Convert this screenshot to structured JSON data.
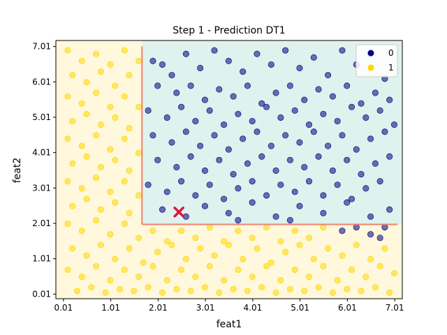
{
  "chart_data": {
    "type": "scatter",
    "title": "Step 1 - Prediction DT1",
    "xlabel": "feat1",
    "ylabel": "feat2",
    "xlim": [
      -0.15,
      7.17
    ],
    "ylim": [
      -0.12,
      7.18
    ],
    "x_ticks": [
      "0.01",
      "1.01",
      "2.01",
      "3.01",
      "4.01",
      "5.01",
      "6.01",
      "7.01"
    ],
    "y_ticks": [
      "0.01",
      "1.01",
      "2.01",
      "3.01",
      "4.01",
      "5.01",
      "6.01",
      "7.01"
    ],
    "x_tick_values": [
      0.01,
      1.01,
      2.01,
      3.01,
      4.01,
      5.01,
      6.01,
      7.01
    ],
    "y_tick_values": [
      0.01,
      1.01,
      2.01,
      3.01,
      4.01,
      5.01,
      6.01,
      7.01
    ],
    "grid": false,
    "legend_position": "top-right",
    "regions": [
      {
        "label": "1",
        "x": [
          -0.15,
          1.67
        ],
        "y": [
          -0.12,
          7.18
        ],
        "color": "#fff8dc"
      },
      {
        "label": "1",
        "x": [
          1.67,
          7.17
        ],
        "y": [
          -0.12,
          1.98
        ],
        "color": "#fff8dc"
      },
      {
        "label": "0",
        "x": [
          1.67,
          7.17
        ],
        "y": [
          1.98,
          7.18
        ],
        "color": "#e0f2ee"
      }
    ],
    "split_lines": [
      {
        "x": [
          1.67,
          1.67
        ],
        "y": [
          1.98,
          7.01
        ],
        "color": "#f08070"
      },
      {
        "x": [
          1.67,
          7.07
        ],
        "y": [
          1.98,
          1.98
        ],
        "color": "#f08070"
      }
    ],
    "marker": {
      "x": 2.45,
      "y": 2.33,
      "symbol": "x",
      "color": "#dc143c"
    },
    "series": [
      {
        "name": "0",
        "color": "#000080",
        "points": [
          [
            1.9,
            6.6
          ],
          [
            2.1,
            6.5
          ],
          [
            2.3,
            6.2
          ],
          [
            2.6,
            6.8
          ],
          [
            2.9,
            6.4
          ],
          [
            3.2,
            6.9
          ],
          [
            3.5,
            6.6
          ],
          [
            3.8,
            6.3
          ],
          [
            4.1,
            6.8
          ],
          [
            4.4,
            6.5
          ],
          [
            4.7,
            6.9
          ],
          [
            5.0,
            6.4
          ],
          [
            5.3,
            6.7
          ],
          [
            5.6,
            6.2
          ],
          [
            5.9,
            6.9
          ],
          [
            6.2,
            6.5
          ],
          [
            6.5,
            6.8
          ],
          [
            6.8,
            6.1
          ],
          [
            2.0,
            5.9
          ],
          [
            2.4,
            5.7
          ],
          [
            2.7,
            5.9
          ],
          [
            3.0,
            5.5
          ],
          [
            3.3,
            5.8
          ],
          [
            3.6,
            5.6
          ],
          [
            3.9,
            5.9
          ],
          [
            4.2,
            5.4
          ],
          [
            4.5,
            5.7
          ],
          [
            4.8,
            5.9
          ],
          [
            5.1,
            5.5
          ],
          [
            5.4,
            5.8
          ],
          [
            5.7,
            5.6
          ],
          [
            6.0,
            5.9
          ],
          [
            6.3,
            5.4
          ],
          [
            6.6,
            5.7
          ],
          [
            6.9,
            5.5
          ],
          [
            1.8,
            5.2
          ],
          [
            2.2,
            5.0
          ],
          [
            2.5,
            5.3
          ],
          [
            2.8,
            4.9
          ],
          [
            3.1,
            5.2
          ],
          [
            3.4,
            4.8
          ],
          [
            3.7,
            5.1
          ],
          [
            4.0,
            4.9
          ],
          [
            4.3,
            5.3
          ],
          [
            4.6,
            5.0
          ],
          [
            4.9,
            5.2
          ],
          [
            5.2,
            4.8
          ],
          [
            5.5,
            5.1
          ],
          [
            5.8,
            4.9
          ],
          [
            6.1,
            5.3
          ],
          [
            6.4,
            5.0
          ],
          [
            6.7,
            5.2
          ],
          [
            7.0,
            4.8
          ],
          [
            1.9,
            4.5
          ],
          [
            2.3,
            4.3
          ],
          [
            2.6,
            4.6
          ],
          [
            2.9,
            4.2
          ],
          [
            3.2,
            4.5
          ],
          [
            3.5,
            4.1
          ],
          [
            3.8,
            4.4
          ],
          [
            4.1,
            4.6
          ],
          [
            4.4,
            4.2
          ],
          [
            4.7,
            4.5
          ],
          [
            5.0,
            4.3
          ],
          [
            5.3,
            4.6
          ],
          [
            5.6,
            4.2
          ],
          [
            5.9,
            4.5
          ],
          [
            6.2,
            4.1
          ],
          [
            6.5,
            4.4
          ],
          [
            6.8,
            4.6
          ],
          [
            2.0,
            3.8
          ],
          [
            2.4,
            3.6
          ],
          [
            2.7,
            3.9
          ],
          [
            3.0,
            3.5
          ],
          [
            3.3,
            3.8
          ],
          [
            3.6,
            3.4
          ],
          [
            3.9,
            3.7
          ],
          [
            4.2,
            3.9
          ],
          [
            4.5,
            3.5
          ],
          [
            4.8,
            3.8
          ],
          [
            5.1,
            3.6
          ],
          [
            5.4,
            3.9
          ],
          [
            5.7,
            3.5
          ],
          [
            6.0,
            3.8
          ],
          [
            6.3,
            3.4
          ],
          [
            6.6,
            3.7
          ],
          [
            6.9,
            3.9
          ],
          [
            1.8,
            3.1
          ],
          [
            2.2,
            2.9
          ],
          [
            2.5,
            3.2
          ],
          [
            2.8,
            2.8
          ],
          [
            3.1,
            3.1
          ],
          [
            3.4,
            2.7
          ],
          [
            3.7,
            3.0
          ],
          [
            4.0,
            3.2
          ],
          [
            4.3,
            2.8
          ],
          [
            4.6,
            3.1
          ],
          [
            4.9,
            2.9
          ],
          [
            5.2,
            3.2
          ],
          [
            5.5,
            2.8
          ],
          [
            5.8,
            3.1
          ],
          [
            6.1,
            2.7
          ],
          [
            6.4,
            3.0
          ],
          [
            6.7,
            3.2
          ],
          [
            2.1,
            2.4
          ],
          [
            2.6,
            2.2
          ],
          [
            3.0,
            2.5
          ],
          [
            3.5,
            2.3
          ],
          [
            4.0,
            2.6
          ],
          [
            4.5,
            2.2
          ],
          [
            5.0,
            2.5
          ],
          [
            5.5,
            2.3
          ],
          [
            6.0,
            2.6
          ],
          [
            6.5,
            2.2
          ],
          [
            6.9,
            2.4
          ],
          [
            3.7,
            2.1
          ],
          [
            4.8,
            2.1
          ],
          [
            6.2,
            1.9
          ],
          [
            6.5,
            1.7
          ],
          [
            6.8,
            1.9
          ],
          [
            5.9,
            1.8
          ],
          [
            6.7,
            1.6
          ]
        ]
      },
      {
        "name": "1",
        "color": "#ffd700",
        "points": [
          [
            0.1,
            6.9
          ],
          [
            0.4,
            6.6
          ],
          [
            0.7,
            6.8
          ],
          [
            1.0,
            6.5
          ],
          [
            1.3,
            6.9
          ],
          [
            1.6,
            6.6
          ],
          [
            0.2,
            6.2
          ],
          [
            0.5,
            6.0
          ],
          [
            0.8,
            6.3
          ],
          [
            1.1,
            5.9
          ],
          [
            1.4,
            6.2
          ],
          [
            0.1,
            5.6
          ],
          [
            0.4,
            5.4
          ],
          [
            0.7,
            5.7
          ],
          [
            1.0,
            5.3
          ],
          [
            1.3,
            5.6
          ],
          [
            1.6,
            5.3
          ],
          [
            0.2,
            4.9
          ],
          [
            0.5,
            5.1
          ],
          [
            0.8,
            4.8
          ],
          [
            1.1,
            5.0
          ],
          [
            1.4,
            4.7
          ],
          [
            0.1,
            4.4
          ],
          [
            0.4,
            4.2
          ],
          [
            0.7,
            4.5
          ],
          [
            1.0,
            4.1
          ],
          [
            1.3,
            4.4
          ],
          [
            1.6,
            4.0
          ],
          [
            0.2,
            3.7
          ],
          [
            0.5,
            3.9
          ],
          [
            0.8,
            3.6
          ],
          [
            1.1,
            3.8
          ],
          [
            1.4,
            3.5
          ],
          [
            0.1,
            3.2
          ],
          [
            0.4,
            3.0
          ],
          [
            0.7,
            3.3
          ],
          [
            1.0,
            2.9
          ],
          [
            1.3,
            3.2
          ],
          [
            1.6,
            2.8
          ],
          [
            0.2,
            2.5
          ],
          [
            0.5,
            2.7
          ],
          [
            0.8,
            2.4
          ],
          [
            1.1,
            2.6
          ],
          [
            1.4,
            2.3
          ],
          [
            0.1,
            2.0
          ],
          [
            0.4,
            1.8
          ],
          [
            0.7,
            2.1
          ],
          [
            1.0,
            1.7
          ],
          [
            1.3,
            2.0
          ],
          [
            1.6,
            1.6
          ],
          [
            1.9,
            1.8
          ],
          [
            2.2,
            1.5
          ],
          [
            2.5,
            1.8
          ],
          [
            2.8,
            1.6
          ],
          [
            3.1,
            1.9
          ],
          [
            3.4,
            1.5
          ],
          [
            3.7,
            1.8
          ],
          [
            4.0,
            1.6
          ],
          [
            4.3,
            1.9
          ],
          [
            4.6,
            1.5
          ],
          [
            4.9,
            1.8
          ],
          [
            5.2,
            1.6
          ],
          [
            5.5,
            1.9
          ],
          [
            0.2,
            1.3
          ],
          [
            0.5,
            1.1
          ],
          [
            0.8,
            1.4
          ],
          [
            1.1,
            1.0
          ],
          [
            1.4,
            1.3
          ],
          [
            1.7,
            0.9
          ],
          [
            2.0,
            1.2
          ],
          [
            2.3,
            1.4
          ],
          [
            2.6,
            1.0
          ],
          [
            2.9,
            1.3
          ],
          [
            3.2,
            1.1
          ],
          [
            3.5,
            1.4
          ],
          [
            3.8,
            1.0
          ],
          [
            4.1,
            1.3
          ],
          [
            4.4,
            0.9
          ],
          [
            4.7,
            1.2
          ],
          [
            5.0,
            1.4
          ],
          [
            5.3,
            1.0
          ],
          [
            5.6,
            1.3
          ],
          [
            5.9,
            1.1
          ],
          [
            6.2,
            1.4
          ],
          [
            6.5,
            1.0
          ],
          [
            6.8,
            1.3
          ],
          [
            0.1,
            0.7
          ],
          [
            0.4,
            0.5
          ],
          [
            0.7,
            0.8
          ],
          [
            1.0,
            0.4
          ],
          [
            1.3,
            0.7
          ],
          [
            1.6,
            0.5
          ],
          [
            1.9,
            0.8
          ],
          [
            2.2,
            0.4
          ],
          [
            2.5,
            0.7
          ],
          [
            2.8,
            0.5
          ],
          [
            3.1,
            0.8
          ],
          [
            3.4,
            0.4
          ],
          [
            3.7,
            0.7
          ],
          [
            4.0,
            0.5
          ],
          [
            4.3,
            0.8
          ],
          [
            4.6,
            0.4
          ],
          [
            4.9,
            0.7
          ],
          [
            5.2,
            0.5
          ],
          [
            5.5,
            0.8
          ],
          [
            5.8,
            0.4
          ],
          [
            6.1,
            0.7
          ],
          [
            6.4,
            0.5
          ],
          [
            6.7,
            0.8
          ],
          [
            7.0,
            0.6
          ],
          [
            0.3,
            0.1
          ],
          [
            0.6,
            0.2
          ],
          [
            0.9,
            0.05
          ],
          [
            1.2,
            0.15
          ],
          [
            1.5,
            0.1
          ],
          [
            1.8,
            0.2
          ],
          [
            2.1,
            0.05
          ],
          [
            2.4,
            0.15
          ],
          [
            2.7,
            0.1
          ],
          [
            3.0,
            0.2
          ],
          [
            3.3,
            0.05
          ],
          [
            3.6,
            0.15
          ],
          [
            3.9,
            0.1
          ],
          [
            4.2,
            0.2
          ],
          [
            4.5,
            0.05
          ],
          [
            4.8,
            0.15
          ],
          [
            5.1,
            0.1
          ],
          [
            5.4,
            0.2
          ],
          [
            5.7,
            0.05
          ],
          [
            6.0,
            0.15
          ],
          [
            6.3,
            0.1
          ],
          [
            6.6,
            0.2
          ],
          [
            6.9,
            0.05
          ]
        ]
      }
    ]
  }
}
